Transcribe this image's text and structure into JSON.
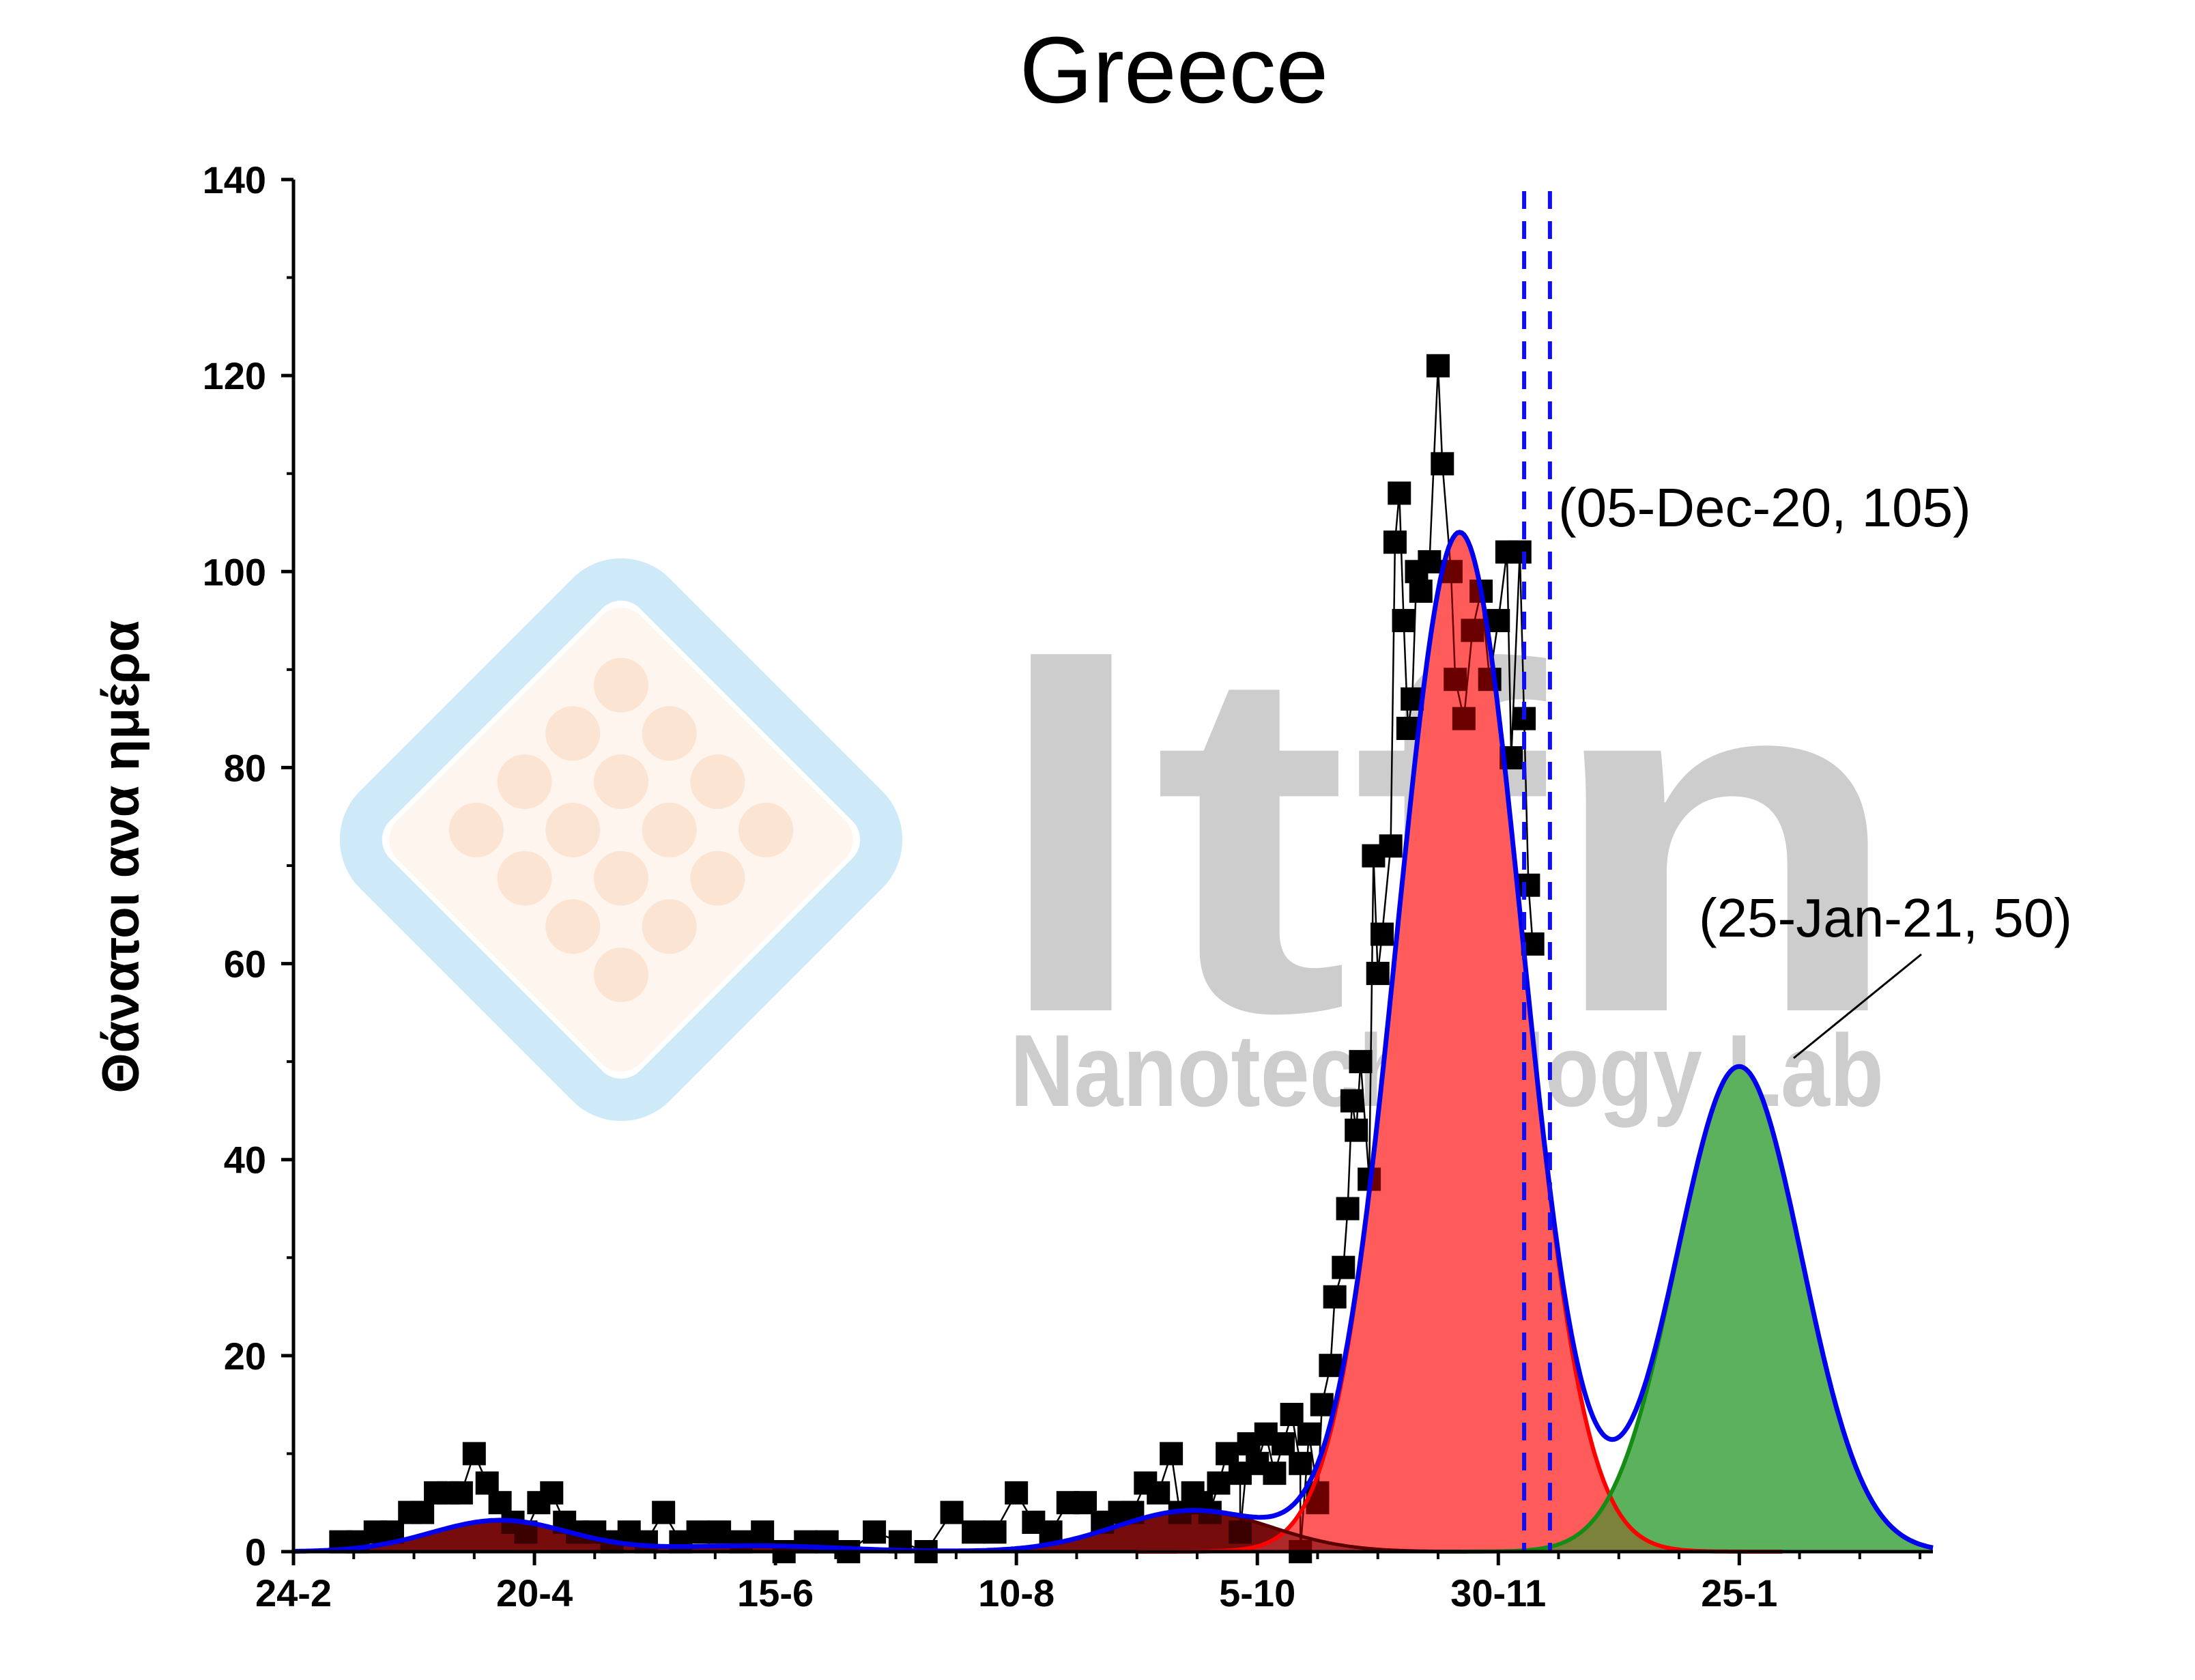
{
  "chart_data": {
    "type": "scatter",
    "title": "Greece",
    "xlabel": "",
    "ylabel": "Θάνατοι ανα ημέρα",
    "x_ticks": [
      "24-2",
      "20-4",
      "15-6",
      "10-8",
      "5-10",
      "30-11",
      "25-1"
    ],
    "y_ticks": [
      "0",
      "20",
      "40",
      "60",
      "80",
      "100",
      "120",
      "140"
    ],
    "ylim": [
      0,
      140
    ],
    "grid": false,
    "watermark": {
      "logo_text": "ltfn",
      "subtitle": "Nanotechnology Lab"
    },
    "annotations": [
      {
        "text": "(05-Dec-20, 105)",
        "x": "2020-12-05",
        "y": 105
      },
      {
        "text": "(25-Jan-21, 50)",
        "x": "2021-01-25",
        "y": 50
      }
    ],
    "vertical_markers": [
      "2020-12-06",
      "2020-12-12"
    ],
    "series": [
      {
        "kind": "markers",
        "color": "#000000",
        "points": [
          [
            "2020-03-06",
            1
          ],
          [
            "2020-03-10",
            1
          ],
          [
            "2020-03-14",
            2
          ],
          [
            "2020-03-18",
            2
          ],
          [
            "2020-03-22",
            4
          ],
          [
            "2020-03-25",
            4
          ],
          [
            "2020-03-28",
            6
          ],
          [
            "2020-03-31",
            6
          ],
          [
            "2020-04-03",
            6
          ],
          [
            "2020-04-06",
            10
          ],
          [
            "2020-04-09",
            7
          ],
          [
            "2020-04-12",
            5
          ],
          [
            "2020-04-15",
            3
          ],
          [
            "2020-04-18",
            2
          ],
          [
            "2020-04-21",
            5
          ],
          [
            "2020-04-24",
            6
          ],
          [
            "2020-04-27",
            3
          ],
          [
            "2020-04-30",
            2
          ],
          [
            "2020-05-04",
            2
          ],
          [
            "2020-05-08",
            1
          ],
          [
            "2020-05-12",
            2
          ],
          [
            "2020-05-16",
            1
          ],
          [
            "2020-05-20",
            4
          ],
          [
            "2020-05-24",
            1
          ],
          [
            "2020-05-28",
            2
          ],
          [
            "2020-06-02",
            2
          ],
          [
            "2020-06-07",
            1
          ],
          [
            "2020-06-12",
            2
          ],
          [
            "2020-06-17",
            0
          ],
          [
            "2020-06-22",
            1
          ],
          [
            "2020-06-27",
            1
          ],
          [
            "2020-07-02",
            0
          ],
          [
            "2020-07-08",
            2
          ],
          [
            "2020-07-14",
            1
          ],
          [
            "2020-07-20",
            0
          ],
          [
            "2020-07-26",
            4
          ],
          [
            "2020-07-31",
            2
          ],
          [
            "2020-08-05",
            2
          ],
          [
            "2020-08-10",
            6
          ],
          [
            "2020-08-14",
            3
          ],
          [
            "2020-08-18",
            2
          ],
          [
            "2020-08-22",
            5
          ],
          [
            "2020-08-26",
            5
          ],
          [
            "2020-08-30",
            3
          ],
          [
            "2020-09-03",
            4
          ],
          [
            "2020-09-06",
            4
          ],
          [
            "2020-09-09",
            7
          ],
          [
            "2020-09-12",
            6
          ],
          [
            "2020-09-15",
            10
          ],
          [
            "2020-09-17",
            4
          ],
          [
            "2020-09-20",
            6
          ],
          [
            "2020-09-22",
            5
          ],
          [
            "2020-09-24",
            4
          ],
          [
            "2020-09-26",
            7
          ],
          [
            "2020-09-28",
            10
          ],
          [
            "2020-10-01",
            8
          ],
          [
            "2020-10-03",
            11
          ],
          [
            "2020-10-05",
            9
          ],
          [
            "2020-10-07",
            12
          ],
          [
            "2020-10-09",
            8
          ],
          [
            "2020-10-11",
            11
          ],
          [
            "2020-10-13",
            14
          ],
          [
            "2020-10-15",
            9
          ],
          [
            "2020-10-17",
            12
          ],
          [
            "2020-10-19",
            6
          ],
          [
            "2020-10-20",
            15
          ],
          [
            "2020-10-22",
            19
          ],
          [
            "2020-10-23",
            26
          ],
          [
            "2020-10-25",
            29
          ],
          [
            "2020-10-26",
            35
          ],
          [
            "2020-10-27",
            46
          ],
          [
            "2020-10-28",
            43
          ],
          [
            "2020-10-29",
            50
          ],
          [
            "2020-10-31",
            38
          ],
          [
            "2020-11-01",
            71
          ],
          [
            "2020-11-02",
            59
          ],
          [
            "2020-11-03",
            63
          ],
          [
            "2020-11-05",
            72
          ],
          [
            "2020-11-06",
            103
          ],
          [
            "2020-11-07",
            108
          ],
          [
            "2020-11-08",
            95
          ],
          [
            "2020-11-09",
            84
          ],
          [
            "2020-11-10",
            87
          ],
          [
            "2020-11-11",
            100
          ],
          [
            "2020-11-12",
            98
          ],
          [
            "2020-11-14",
            101
          ],
          [
            "2020-11-16",
            121
          ],
          [
            "2020-11-17",
            111
          ],
          [
            "2020-11-19",
            100
          ],
          [
            "2020-11-20",
            89
          ],
          [
            "2020-11-22",
            85
          ],
          [
            "2020-11-24",
            94
          ],
          [
            "2020-11-26",
            98
          ],
          [
            "2020-11-28",
            89
          ],
          [
            "2020-11-30",
            95
          ],
          [
            "2020-12-02",
            102
          ],
          [
            "2020-12-03",
            81
          ],
          [
            "2020-12-05",
            102
          ],
          [
            "2020-12-06",
            85
          ],
          [
            "2020-12-07",
            68
          ],
          [
            "2020-12-08",
            62
          ],
          [
            "2020-10-15",
            0
          ],
          [
            "2020-10-19",
            5
          ],
          [
            "2020-10-01",
            2
          ]
        ]
      },
      {
        "kind": "gaussian-fill",
        "name": "",
        "color": "#ff9e9e",
        "stroke": "#ff0000",
        "center": "2020-11-21",
        "amplitude": 104,
        "sigma_days": 14.5
      },
      {
        "kind": "gaussian-fill",
        "name": "",
        "color": "#7dc27d",
        "stroke": "#158d15",
        "center": "2021-01-25",
        "amplitude": 49.5,
        "sigma_days": 14.5
      },
      {
        "kind": "gaussian-fill",
        "name": "",
        "color": "#7b1010",
        "stroke": "#5a0000",
        "components": [
          {
            "center": "2020-04-12",
            "amplitude": 3.2,
            "sigma_days": 16
          },
          {
            "center": "2020-06-10",
            "amplitude": 0.6,
            "sigma_days": 20
          },
          {
            "center": "2020-09-20",
            "amplitude": 4.2,
            "sigma_days": 18
          }
        ]
      },
      {
        "kind": "fit-line",
        "name": "",
        "color": "#0000ee"
      }
    ]
  }
}
